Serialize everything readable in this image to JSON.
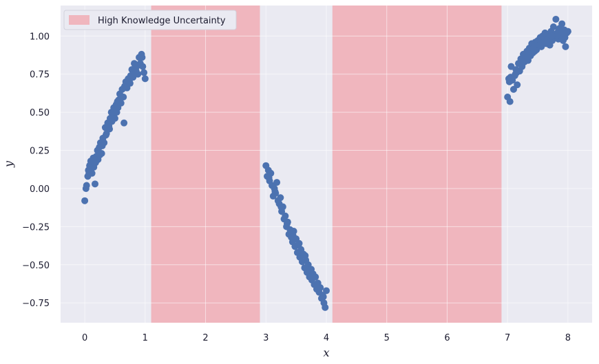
{
  "chart_data": {
    "type": "scatter",
    "xlabel": "x",
    "ylabel": "y",
    "xlim": [
      -0.4,
      8.4
    ],
    "ylim": [
      -0.88,
      1.2
    ],
    "xticks": [
      0,
      1,
      2,
      3,
      4,
      5,
      6,
      7,
      8
    ],
    "yticks": [
      -0.75,
      -0.5,
      -0.25,
      0.0,
      0.25,
      0.5,
      0.75,
      1.0
    ],
    "ytick_labels": [
      "−0.75",
      "−0.50",
      "−0.25",
      "0.00",
      "0.25",
      "0.50",
      "0.75",
      "1.00"
    ],
    "grid": true,
    "legend_position": "top-left",
    "colors": {
      "background": "#eaeaf2",
      "grid": "#ffffff",
      "points": "#4c72b0",
      "band": "#f0b6be"
    },
    "bands": [
      {
        "name": "High Knowledge Uncertainty",
        "x0": 1.1,
        "x1": 2.9
      },
      {
        "name": "",
        "x0": 4.1,
        "x1": 6.9
      }
    ],
    "legend": [
      {
        "label": "High Knowledge Uncertainty",
        "color": "#f0b6be"
      }
    ],
    "series": [
      {
        "x": [
          0.0,
          0.02,
          0.03,
          0.05,
          0.06,
          0.08,
          0.1,
          0.12,
          0.14,
          0.15,
          0.17,
          0.19,
          0.21,
          0.22,
          0.24,
          0.26,
          0.28,
          0.3,
          0.32,
          0.34,
          0.36,
          0.38,
          0.4,
          0.42,
          0.44,
          0.46,
          0.48,
          0.5,
          0.52,
          0.54,
          0.56,
          0.58,
          0.6,
          0.62,
          0.64,
          0.66,
          0.68,
          0.7,
          0.72,
          0.74,
          0.76,
          0.78,
          0.8,
          0.82,
          0.84,
          0.86,
          0.88,
          0.9,
          0.92,
          0.94,
          0.96,
          0.98,
          1.0,
          0.11,
          0.25,
          0.35,
          0.45,
          0.55,
          0.65,
          0.75,
          0.85,
          0.95,
          0.07,
          0.18,
          0.29,
          0.41,
          0.53,
          0.63,
          0.73,
          0.83
        ],
        "y": [
          -0.08,
          0.0,
          0.02,
          0.08,
          0.12,
          0.15,
          0.18,
          0.1,
          0.2,
          0.14,
          0.03,
          0.21,
          0.25,
          0.19,
          0.27,
          0.3,
          0.23,
          0.33,
          0.3,
          0.4,
          0.36,
          0.43,
          0.41,
          0.46,
          0.5,
          0.48,
          0.53,
          0.46,
          0.55,
          0.57,
          0.58,
          0.62,
          0.56,
          0.65,
          0.6,
          0.67,
          0.7,
          0.66,
          0.72,
          0.71,
          0.74,
          0.78,
          0.73,
          0.82,
          0.76,
          0.8,
          0.75,
          0.86,
          0.82,
          0.88,
          0.8,
          0.76,
          0.72,
          0.13,
          0.22,
          0.35,
          0.44,
          0.53,
          0.43,
          0.69,
          0.77,
          0.86,
          0.1,
          0.17,
          0.28,
          0.39,
          0.5,
          0.6,
          0.7,
          0.79
        ]
      },
      {
        "x": [
          3.0,
          3.02,
          3.04,
          3.06,
          3.08,
          3.1,
          3.12,
          3.14,
          3.16,
          3.18,
          3.2,
          3.22,
          3.24,
          3.26,
          3.28,
          3.3,
          3.32,
          3.34,
          3.36,
          3.38,
          3.4,
          3.42,
          3.44,
          3.46,
          3.48,
          3.5,
          3.52,
          3.54,
          3.56,
          3.58,
          3.6,
          3.62,
          3.64,
          3.66,
          3.68,
          3.7,
          3.72,
          3.74,
          3.76,
          3.78,
          3.8,
          3.82,
          3.84,
          3.86,
          3.88,
          3.9,
          3.92,
          3.94,
          3.96,
          3.98,
          4.0,
          3.05,
          3.15,
          3.25,
          3.35,
          3.45,
          3.55,
          3.65,
          3.75,
          3.85,
          3.95
        ],
        "y": [
          0.15,
          0.08,
          0.12,
          0.05,
          0.1,
          0.02,
          -0.05,
          0.0,
          -0.03,
          0.04,
          -0.08,
          -0.1,
          -0.06,
          -0.15,
          -0.12,
          -0.2,
          -0.18,
          -0.25,
          -0.22,
          -0.3,
          -0.27,
          -0.32,
          -0.35,
          -0.28,
          -0.38,
          -0.33,
          -0.42,
          -0.37,
          -0.45,
          -0.4,
          -0.48,
          -0.43,
          -0.52,
          -0.47,
          -0.55,
          -0.5,
          -0.58,
          -0.53,
          -0.6,
          -0.56,
          -0.63,
          -0.58,
          -0.66,
          -0.62,
          -0.68,
          -0.65,
          -0.72,
          -0.7,
          -0.75,
          -0.78,
          -0.67,
          0.07,
          -0.02,
          -0.12,
          -0.23,
          -0.31,
          -0.36,
          -0.44,
          -0.53,
          -0.63,
          -0.71
        ]
      },
      {
        "x": [
          7.0,
          7.02,
          7.04,
          7.06,
          7.08,
          7.1,
          7.12,
          7.14,
          7.16,
          7.18,
          7.2,
          7.22,
          7.24,
          7.26,
          7.28,
          7.3,
          7.32,
          7.34,
          7.36,
          7.38,
          7.4,
          7.42,
          7.44,
          7.46,
          7.48,
          7.5,
          7.52,
          7.54,
          7.56,
          7.58,
          7.6,
          7.62,
          7.64,
          7.66,
          7.68,
          7.7,
          7.72,
          7.74,
          7.76,
          7.78,
          7.8,
          7.82,
          7.84,
          7.86,
          7.88,
          7.9,
          7.92,
          7.94,
          7.96,
          7.98,
          8.0,
          7.05,
          7.15,
          7.25,
          7.35,
          7.45,
          7.55,
          7.65,
          7.75,
          7.85,
          7.95,
          7.03,
          7.13,
          7.23,
          7.33,
          7.43,
          7.53,
          7.63,
          7.73,
          7.83,
          7.93
        ],
        "y": [
          0.6,
          0.72,
          0.57,
          0.8,
          0.71,
          0.65,
          0.74,
          0.78,
          0.68,
          0.82,
          0.77,
          0.85,
          0.8,
          0.88,
          0.83,
          0.86,
          0.9,
          0.84,
          0.92,
          0.87,
          0.95,
          0.89,
          0.93,
          0.96,
          0.91,
          0.97,
          0.94,
          0.99,
          0.93,
          1.0,
          0.96,
          1.02,
          0.95,
          0.98,
          1.01,
          0.94,
          1.03,
          0.97,
          1.06,
          0.99,
          1.11,
          1.02,
          0.98,
          1.05,
          1.0,
          1.08,
          0.97,
          1.04,
          0.93,
          1.02,
          1.03,
          0.73,
          0.76,
          0.83,
          0.88,
          0.9,
          0.95,
          0.97,
          1.0,
          1.04,
          0.99,
          0.7,
          0.75,
          0.81,
          0.86,
          0.92,
          0.94,
          0.96,
          1.0,
          1.01,
          1.02
        ]
      }
    ]
  }
}
